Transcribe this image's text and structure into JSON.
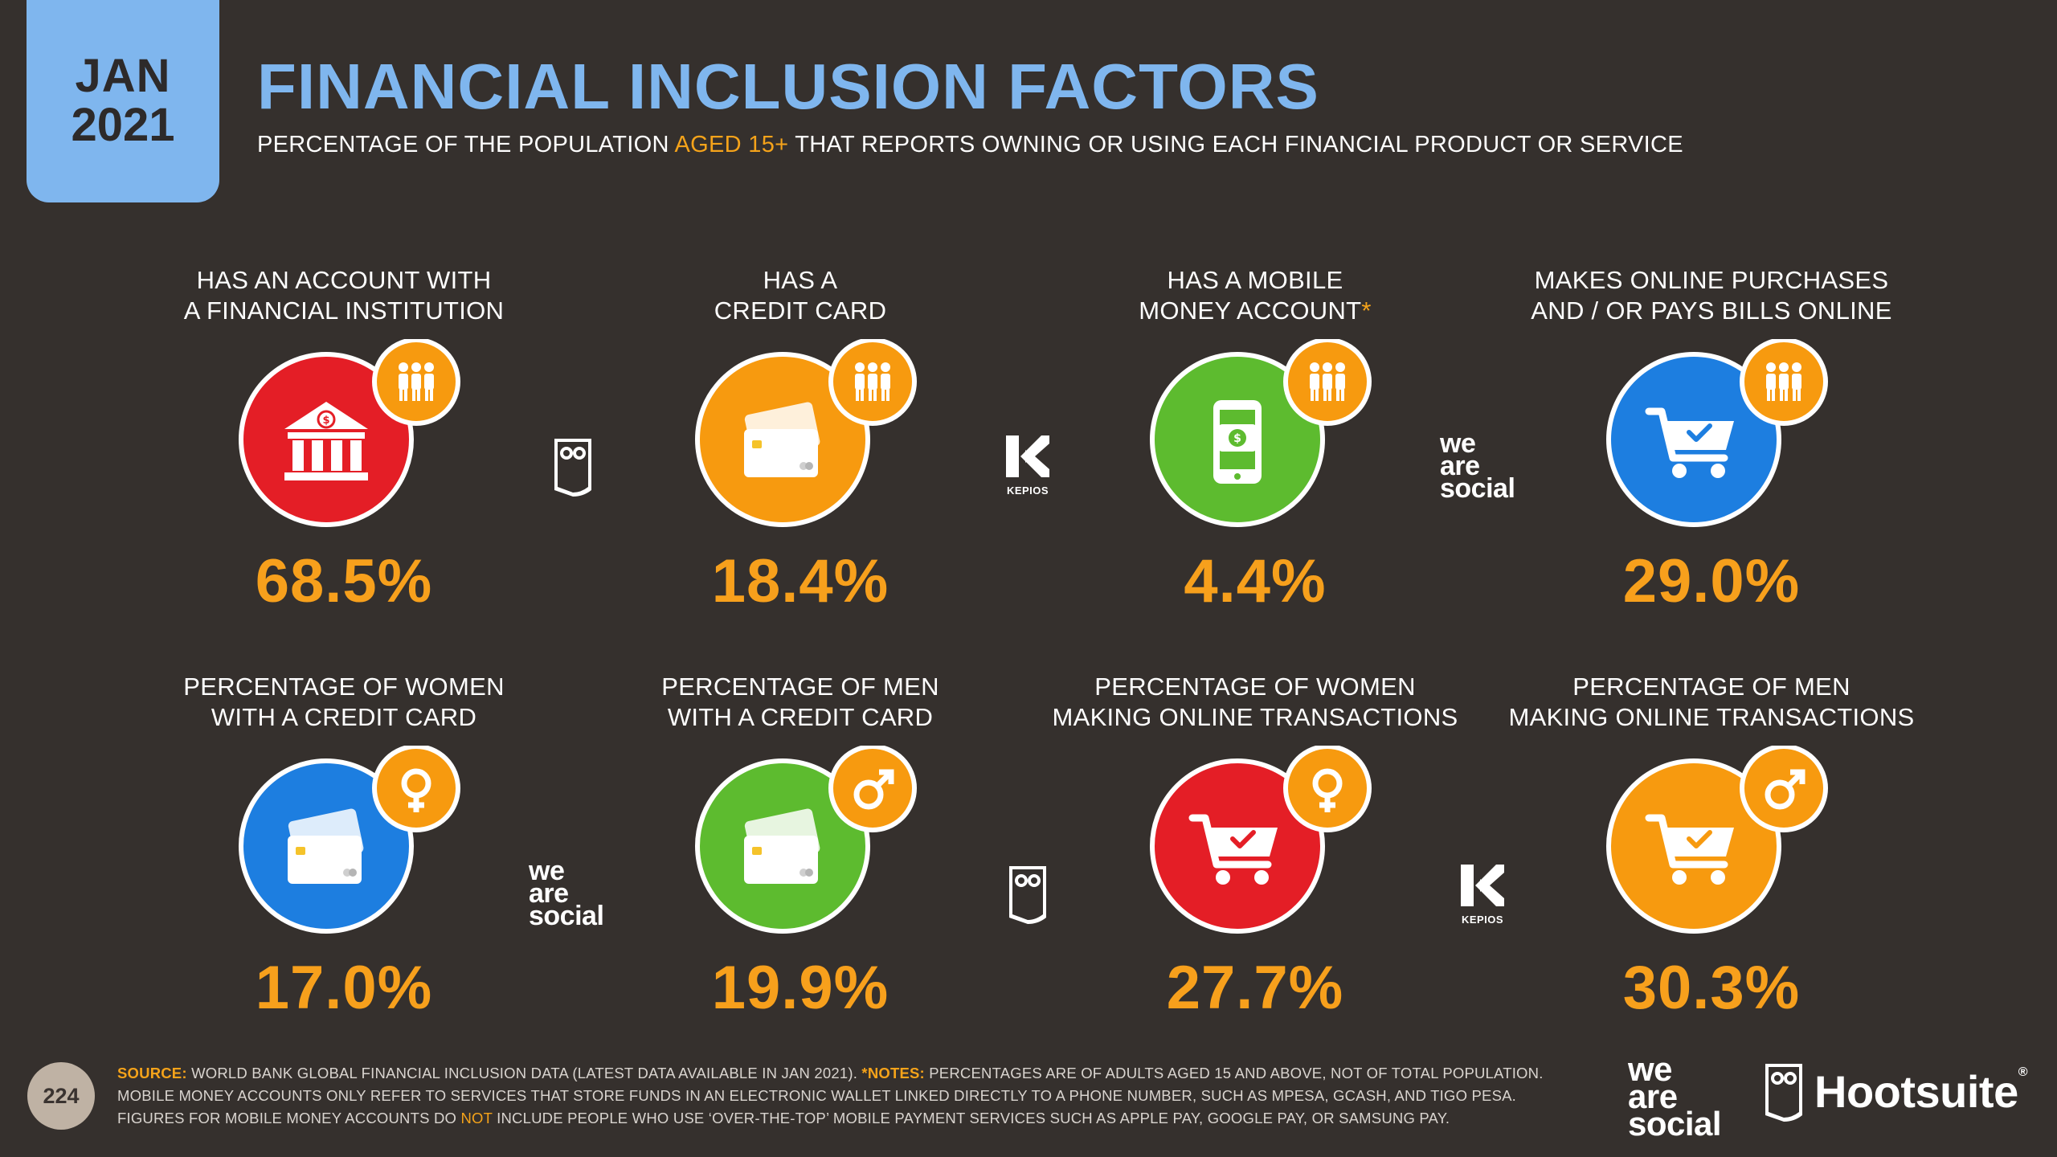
{
  "header": {
    "month": "JAN",
    "year": "2021",
    "title": "FINANCIAL INCLUSION FACTORS",
    "subtitle_pre": "PERCENTAGE OF THE POPULATION",
    "subtitle_hl": "AGED 15+",
    "subtitle_post": "THAT REPORTS OWNING OR USING EACH FINANCIAL PRODUCT OR SERVICE"
  },
  "colors": {
    "background": "#35302d",
    "accent_blue": "#7fb6ee",
    "accent_orange": "#f7a01c",
    "red": "#e41e26",
    "orange": "#f79a0f",
    "green": "#5dbb2f",
    "blue": "#1d7ee0"
  },
  "stats": [
    {
      "label_1": "HAS AN ACCOUNT WITH",
      "label_2": "A FINANCIAL INSTITUTION",
      "value": "68.5%",
      "icon": "bank-icon",
      "badge": "people-icon",
      "color": "#e41e26"
    },
    {
      "label_1": "HAS A",
      "label_2": "CREDIT CARD",
      "value": "18.4%",
      "icon": "credit-card-icon",
      "badge": "people-icon",
      "color": "#f79a0f"
    },
    {
      "label_1": "HAS A MOBILE",
      "label_2": "MONEY ACCOUNT",
      "asterisk": "*",
      "value": "4.4%",
      "icon": "mobile-money-icon",
      "badge": "people-icon",
      "color": "#5dbb2f"
    },
    {
      "label_1": "MAKES ONLINE PURCHASES",
      "label_2": "AND / OR PAYS BILLS ONLINE",
      "value": "29.0%",
      "icon": "shopping-cart-icon",
      "badge": "people-icon",
      "color": "#1d7ee0"
    },
    {
      "label_1": "PERCENTAGE OF WOMEN",
      "label_2": "WITH A CREDIT CARD",
      "value": "17.0%",
      "icon": "credit-card-icon",
      "badge": "female-icon",
      "color": "#1d7ee0"
    },
    {
      "label_1": "PERCENTAGE OF MEN",
      "label_2": "WITH A CREDIT CARD",
      "value": "19.9%",
      "icon": "credit-card-icon",
      "badge": "male-icon",
      "color": "#5dbb2f"
    },
    {
      "label_1": "PERCENTAGE OF WOMEN",
      "label_2": "MAKING ONLINE TRANSACTIONS",
      "value": "27.7%",
      "icon": "shopping-cart-icon",
      "badge": "female-icon",
      "color": "#e41e26"
    },
    {
      "label_1": "PERCENTAGE OF MEN",
      "label_2": "MAKING ONLINE TRANSACTIONS",
      "value": "30.3%",
      "icon": "shopping-cart-icon",
      "badge": "male-icon",
      "color": "#f79a0f"
    }
  ],
  "logos": {
    "kepios": "KEPIOS",
    "we": "we",
    "are": "are",
    "social": "social"
  },
  "footer": {
    "page_number": "224",
    "source_label": "SOURCE:",
    "source_text": "WORLD BANK GLOBAL FINANCIAL INCLUSION DATA (LATEST DATA AVAILABLE IN JAN 2021).",
    "notes_label": "*NOTES:",
    "notes_text_1": "PERCENTAGES ARE OF ADULTS AGED 15 AND ABOVE, NOT OF TOTAL POPULATION. MOBILE MONEY ACCOUNTS ONLY REFER TO SERVICES THAT STORE FUNDS IN AN ELECTRONIC WALLET LINKED DIRECTLY TO A PHONE NUMBER, SUCH AS MPESA, GCASH, AND TIGO PESA. FIGURES FOR MOBILE MONEY ACCOUNTS DO",
    "notes_not": "NOT",
    "notes_text_2": "INCLUDE PEOPLE WHO USE ‘OVER-THE-TOP’ MOBILE PAYMENT SERVICES SUCH AS APPLE PAY, GOOGLE PAY, OR SAMSUNG PAY.",
    "brand": "Hootsuite",
    "brand_mark": "®"
  }
}
